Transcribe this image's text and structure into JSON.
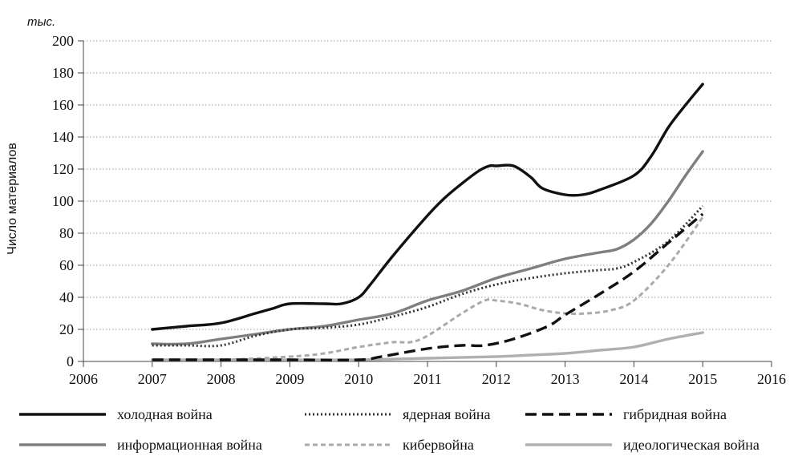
{
  "chart_data": {
    "type": "line",
    "unit_label": "тыс.",
    "ylabel": "Число материалов",
    "xlabel": "",
    "title": "",
    "xlim": [
      2006,
      2016
    ],
    "ylim": [
      0,
      200
    ],
    "x_ticks": [
      "2006",
      "2007",
      "2008",
      "2009",
      "2010",
      "2011",
      "2012",
      "2013",
      "2014",
      "2015",
      "2016"
    ],
    "y_ticks": [
      "0",
      "20",
      "40",
      "60",
      "80",
      "100",
      "120",
      "140",
      "160",
      "180",
      "200"
    ],
    "grid": "horizontal dotted",
    "legend": "bottom",
    "series": [
      {
        "name": "холодная война",
        "color": "#111111",
        "dash": "solid",
        "points": [
          [
            2007,
            20
          ],
          [
            2007.5,
            22
          ],
          [
            2008,
            24
          ],
          [
            2008.5,
            30
          ],
          [
            2008.75,
            33
          ],
          [
            2009,
            36
          ],
          [
            2009.5,
            36
          ],
          [
            2009.75,
            36
          ],
          [
            2010,
            40
          ],
          [
            2010.17,
            48
          ],
          [
            2010.5,
            66
          ],
          [
            2011,
            91
          ],
          [
            2011.25,
            102
          ],
          [
            2011.5,
            111
          ],
          [
            2011.75,
            119
          ],
          [
            2011.9,
            122
          ],
          [
            2012,
            122
          ],
          [
            2012.25,
            122
          ],
          [
            2012.5,
            115
          ],
          [
            2012.67,
            108
          ],
          [
            2013,
            104
          ],
          [
            2013.25,
            104
          ],
          [
            2013.5,
            107
          ],
          [
            2014,
            116
          ],
          [
            2014.25,
            128
          ],
          [
            2014.5,
            146
          ],
          [
            2014.75,
            160
          ],
          [
            2015,
            173
          ]
        ]
      },
      {
        "name": "ядерная война",
        "color": "#333333",
        "dash": "dotted",
        "points": [
          [
            2007,
            10
          ],
          [
            2007.5,
            10
          ],
          [
            2008,
            10
          ],
          [
            2008.5,
            16
          ],
          [
            2009,
            20
          ],
          [
            2009.5,
            21
          ],
          [
            2010,
            23
          ],
          [
            2010.5,
            28
          ],
          [
            2011,
            34
          ],
          [
            2011.5,
            42
          ],
          [
            2012,
            48
          ],
          [
            2012.5,
            52
          ],
          [
            2013,
            55
          ],
          [
            2013.5,
            57
          ],
          [
            2013.75,
            58
          ],
          [
            2014,
            62
          ],
          [
            2014.5,
            75
          ],
          [
            2015,
            97
          ]
        ]
      },
      {
        "name": "гибридная война",
        "color": "#111111",
        "dash": "dashed",
        "points": [
          [
            2007,
            1
          ],
          [
            2008,
            1
          ],
          [
            2009,
            1
          ],
          [
            2010,
            1
          ],
          [
            2010.33,
            3
          ],
          [
            2011,
            8
          ],
          [
            2011.5,
            10
          ],
          [
            2011.83,
            10
          ],
          [
            2012.25,
            14
          ],
          [
            2012.75,
            22
          ],
          [
            2013,
            29
          ],
          [
            2013.5,
            42
          ],
          [
            2014,
            56
          ],
          [
            2014.5,
            74
          ],
          [
            2015,
            92
          ]
        ]
      },
      {
        "name": "информационная война",
        "color": "#7f7f7f",
        "dash": "solid",
        "points": [
          [
            2007,
            11
          ],
          [
            2007.5,
            11
          ],
          [
            2008,
            14
          ],
          [
            2008.5,
            17
          ],
          [
            2009,
            20
          ],
          [
            2009.5,
            22
          ],
          [
            2010,
            26
          ],
          [
            2010.5,
            30
          ],
          [
            2011,
            38
          ],
          [
            2011.5,
            44
          ],
          [
            2012,
            52
          ],
          [
            2012.5,
            58
          ],
          [
            2013,
            64
          ],
          [
            2013.5,
            68
          ],
          [
            2013.75,
            70
          ],
          [
            2014,
            76
          ],
          [
            2014.25,
            86
          ],
          [
            2014.5,
            100
          ],
          [
            2014.75,
            116
          ],
          [
            2015,
            131
          ]
        ]
      },
      {
        "name": "кибервойна",
        "color": "#aaaaaa",
        "dash": "dashed-short",
        "points": [
          [
            2007,
            1
          ],
          [
            2008,
            1
          ],
          [
            2009,
            3
          ],
          [
            2009.5,
            5
          ],
          [
            2010,
            9
          ],
          [
            2010.5,
            12
          ],
          [
            2010.75,
            12
          ],
          [
            2011,
            16
          ],
          [
            2011.5,
            30
          ],
          [
            2011.83,
            38
          ],
          [
            2012,
            38
          ],
          [
            2012.33,
            36
          ],
          [
            2012.67,
            32
          ],
          [
            2013,
            30
          ],
          [
            2013.33,
            30
          ],
          [
            2013.67,
            32
          ],
          [
            2014,
            38
          ],
          [
            2014.5,
            60
          ],
          [
            2015,
            90
          ]
        ]
      },
      {
        "name": "идеологическая война",
        "color": "#b0b0b0",
        "dash": "solid",
        "points": [
          [
            2007,
            1
          ],
          [
            2008,
            1
          ],
          [
            2009,
            1
          ],
          [
            2010,
            1
          ],
          [
            2011,
            2
          ],
          [
            2012,
            3
          ],
          [
            2012.5,
            4
          ],
          [
            2013,
            5
          ],
          [
            2013.5,
            7
          ],
          [
            2014,
            9
          ],
          [
            2014.5,
            14
          ],
          [
            2015,
            18
          ]
        ]
      }
    ]
  }
}
